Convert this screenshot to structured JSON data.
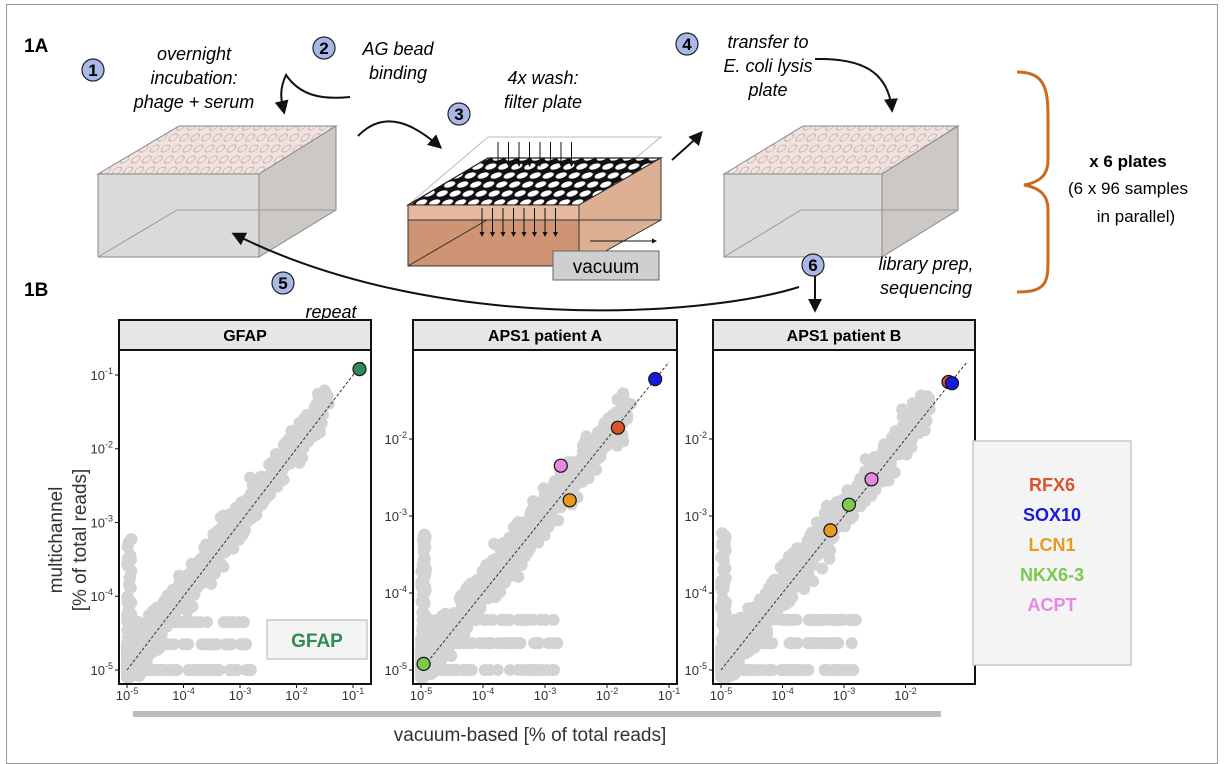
{
  "panel_a": {
    "label": "1A",
    "steps": [
      {
        "num": "1",
        "lines": [
          "overnight",
          "incubation:",
          "phage + serum"
        ]
      },
      {
        "num": "2",
        "lines": [
          "AG bead",
          "binding"
        ]
      },
      {
        "num": "3",
        "lines": [
          "4x wash:",
          "filter plate"
        ]
      },
      {
        "num": "4",
        "lines": [
          "transfer to",
          "E. coli lysis",
          "plate"
        ]
      },
      {
        "num": "5",
        "lines": [
          "repeat"
        ]
      },
      {
        "num": "6",
        "lines": [
          "library prep,",
          "sequencing"
        ]
      }
    ],
    "vacuum_label": "vacuum",
    "plates_bold": "x 6 plates",
    "plates_lines": [
      "(6 x 96 samples",
      "in parallel)"
    ],
    "colors": {
      "step_circle": "#aab8e8",
      "brace": "#cc6a1e",
      "plate_top": "#ecdcd8",
      "plate_side": "#d6d4d2",
      "filter_body": "#d9a98a",
      "filter_front": "#c98a68"
    }
  },
  "panel_b": {
    "label": "1B",
    "ylabel_lines": [
      "multichannel",
      "[% of total reads]"
    ],
    "xlabel": "vacuum-based [% of total reads]",
    "legend": [
      {
        "name": "RFX6",
        "color": "#d9532b"
      },
      {
        "name": "SOX10",
        "color": "#1a1adb"
      },
      {
        "name": "LCN1",
        "color": "#e89a1f"
      },
      {
        "name": "NKX6-3",
        "color": "#7ec850"
      },
      {
        "name": "ACPT",
        "color": "#e58ae0"
      }
    ],
    "inset_label": {
      "text": "GFAP",
      "color": "#2e8b57"
    }
  },
  "chart_data": [
    {
      "type": "scatter",
      "title": "GFAP",
      "scale": "log",
      "x_ticks": [
        "10^-5",
        "10^-4",
        "10^-3",
        "10^-2",
        "10^-1"
      ],
      "y_ticks": [
        "10^-5",
        "10^-4",
        "10^-3",
        "10^-2",
        "10^-1"
      ],
      "xlim": [
        1e-05,
        0.15
      ],
      "ylim": [
        1e-05,
        0.15
      ],
      "highlight": [
        {
          "name": "GFAP",
          "x": 0.13,
          "y": 0.12,
          "color": "#2e8b57"
        }
      ]
    },
    {
      "type": "scatter",
      "title": "APS1 patient A",
      "scale": "log",
      "x_ticks": [
        "10^-5",
        "10^-4",
        "10^-3",
        "10^-2",
        "10^-1"
      ],
      "y_ticks": [
        "10^-5",
        "10^-4",
        "10^-3",
        "10^-2"
      ],
      "xlim": [
        1e-05,
        0.1
      ],
      "ylim": [
        1e-05,
        0.1
      ],
      "highlight": [
        {
          "name": "SOX10",
          "x": 0.06,
          "y": 0.06,
          "color": "#1a1adb"
        },
        {
          "name": "RFX6",
          "x": 0.015,
          "y": 0.014,
          "color": "#d9532b"
        },
        {
          "name": "ACPT",
          "x": 0.0018,
          "y": 0.0045,
          "color": "#e58ae0"
        },
        {
          "name": "LCN1",
          "x": 0.0025,
          "y": 0.0016,
          "color": "#e89a1f"
        },
        {
          "name": "NKX6-3",
          "x": 1.1e-05,
          "y": 1.2e-05,
          "color": "#7ec850"
        }
      ]
    },
    {
      "type": "scatter",
      "title": "APS1 patient B",
      "scale": "log",
      "x_ticks": [
        "10^-5",
        "10^-4",
        "10^-3",
        "10^-2"
      ],
      "y_ticks": [
        "10^-5",
        "10^-4",
        "10^-3",
        "10^-2"
      ],
      "xlim": [
        1e-05,
        0.1
      ],
      "ylim": [
        1e-05,
        0.1
      ],
      "highlight": [
        {
          "name": "RFX6",
          "x": 0.05,
          "y": 0.055,
          "color": "#d9532b"
        },
        {
          "name": "SOX10",
          "x": 0.057,
          "y": 0.053,
          "color": "#1a1adb"
        },
        {
          "name": "ACPT",
          "x": 0.0028,
          "y": 0.003,
          "color": "#e58ae0"
        },
        {
          "name": "NKX6-3",
          "x": 0.0012,
          "y": 0.0014,
          "color": "#7ec850"
        },
        {
          "name": "LCN1",
          "x": 0.0006,
          "y": 0.00065,
          "color": "#e89a1f"
        }
      ]
    }
  ]
}
